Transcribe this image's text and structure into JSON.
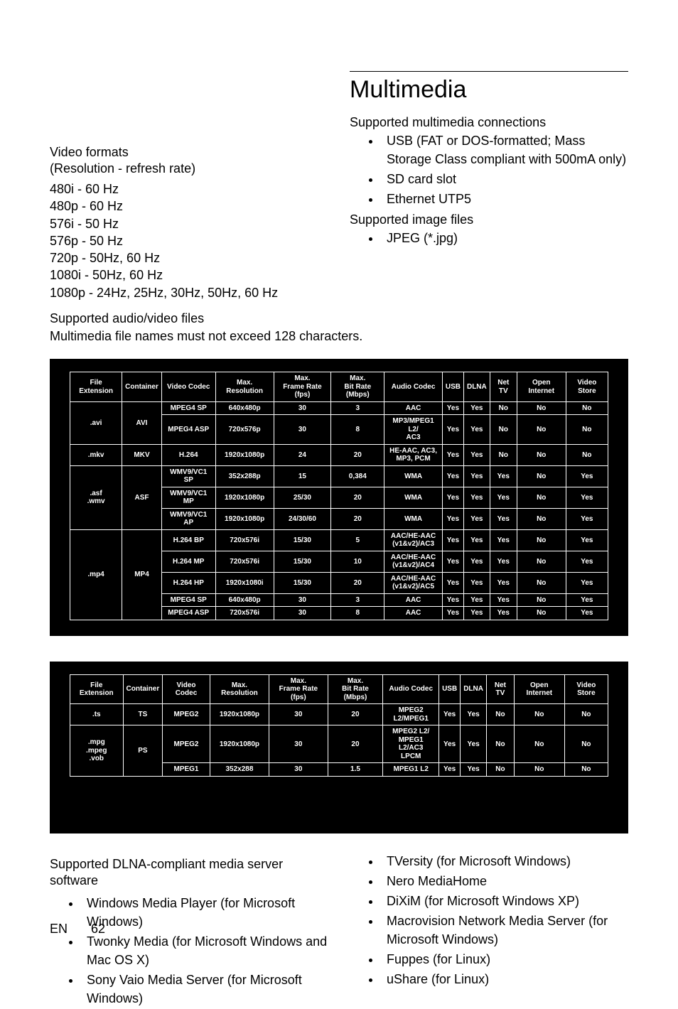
{
  "heading": "Multimedia",
  "left": {
    "video_formats_title": "Video formats",
    "video_formats_sub": "(Resolution - refresh rate)",
    "resolutions": [
      "480i - 60 Hz",
      "480p - 60 Hz",
      "576i - 50 Hz",
      "576p - 50 Hz",
      "720p - 50Hz, 60 Hz",
      "1080i - 50Hz, 60 Hz",
      "1080p - 24Hz, 25Hz, 30Hz, 50Hz, 60 Hz"
    ]
  },
  "right": {
    "conn_title": "Supported multimedia connections",
    "conn_items": [
      "USB (FAT or DOS-formatted; Mass Storage Class compliant with 500mA only)",
      "SD card slot",
      "Ethernet UTP5"
    ],
    "img_title": "Supported image files",
    "img_items": [
      "JPEG (*.jpg)"
    ]
  },
  "audio_title": "Supported audio/video files",
  "audio_note": "Multimedia file names must not exceed 128 characters.",
  "table_headers": [
    "File Extension",
    "Container",
    "Video Codec",
    "Max. Resolution",
    "Max.\nFrame Rate (fps)",
    "Max.\nBit Rate (Mbps)",
    "Audio Codec",
    "USB",
    "DLNA",
    "Net TV",
    "Open Internet",
    "Video Store"
  ],
  "table1": [
    {
      "ext": ".avi",
      "ext_rs": 2,
      "cont": "AVI",
      "cont_rs": 2,
      "vc": "MPEG4 SP",
      "res": "640x480p",
      "fr": "30",
      "br": "3",
      "ac": "AAC",
      "u": "Yes",
      "d": "Yes",
      "n": "No",
      "o": "No",
      "v": "No"
    },
    {
      "vc": "MPEG4 ASP",
      "res": "720x576p",
      "fr": "30",
      "br": "8",
      "ac": "MP3/MPEG1 L2/\nAC3",
      "u": "Yes",
      "d": "Yes",
      "n": "No",
      "o": "No",
      "v": "No"
    },
    {
      "ext": ".mkv",
      "cont": "MKV",
      "vc": "H.264",
      "res": "1920x1080p",
      "fr": "24",
      "br": "20",
      "ac": "HE-AAC, AC3,\nMP3, PCM",
      "u": "Yes",
      "d": "Yes",
      "n": "No",
      "o": "No",
      "v": "No"
    },
    {
      "ext": ".asf\n.wmv",
      "ext_rs": 3,
      "cont": "ASF",
      "cont_rs": 3,
      "vc": "WMV9/VC1 SP",
      "res": "352x288p",
      "fr": "15",
      "br": "0,384",
      "ac": "WMA",
      "u": "Yes",
      "d": "Yes",
      "n": "Yes",
      "o": "No",
      "v": "Yes"
    },
    {
      "vc": "WMV9/VC1 MP",
      "res": "1920x1080p",
      "fr": "25/30",
      "br": "20",
      "ac": "WMA",
      "u": "Yes",
      "d": "Yes",
      "n": "Yes",
      "o": "No",
      "v": "Yes"
    },
    {
      "vc": "WMV9/VC1 AP",
      "res": "1920x1080p",
      "fr": "24/30/60",
      "br": "20",
      "ac": "WMA",
      "u": "Yes",
      "d": "Yes",
      "n": "Yes",
      "o": "No",
      "v": "Yes"
    },
    {
      "ext": ".mp4",
      "ext_rs": 5,
      "cont": "MP4",
      "cont_rs": 5,
      "vc": "H.264 BP",
      "res": "720x576i",
      "fr": "15/30",
      "br": "5",
      "ac": "AAC/HE-AAC\n(v1&v2)/AC3",
      "u": "Yes",
      "d": "Yes",
      "n": "Yes",
      "o": "No",
      "v": "Yes"
    },
    {
      "vc": "H.264 MP",
      "res": "720x576i",
      "fr": "15/30",
      "br": "10",
      "ac": "AAC/HE-AAC\n(v1&v2)/AC4",
      "u": "Yes",
      "d": "Yes",
      "n": "Yes",
      "o": "No",
      "v": "Yes"
    },
    {
      "vc": "H.264 HP",
      "res": "1920x1080i",
      "fr": "15/30",
      "br": "20",
      "ac": "AAC/HE-AAC\n(v1&v2)/AC5",
      "u": "Yes",
      "d": "Yes",
      "n": "Yes",
      "o": "No",
      "v": "Yes"
    },
    {
      "vc": "MPEG4 SP",
      "res": "640x480p",
      "fr": "30",
      "br": "3",
      "ac": "AAC",
      "u": "Yes",
      "d": "Yes",
      "n": "Yes",
      "o": "No",
      "v": "Yes"
    },
    {
      "vc": "MPEG4 ASP",
      "res": "720x576i",
      "fr": "30",
      "br": "8",
      "ac": "AAC",
      "u": "Yes",
      "d": "Yes",
      "n": "Yes",
      "o": "No",
      "v": "Yes"
    }
  ],
  "table2": [
    {
      "ext": ".ts",
      "cont": "TS",
      "vc": "MPEG2",
      "res": "1920x1080p",
      "fr": "30",
      "br": "20",
      "ac": "MPEG2\nL2/MPEG1",
      "u": "Yes",
      "d": "Yes",
      "n": "No",
      "o": "No",
      "v": "No"
    },
    {
      "ext": ".mpg\n.mpeg\n.vob",
      "ext_rs": 2,
      "cont": "PS",
      "cont_rs": 2,
      "vc": "MPEG2",
      "res": "1920x1080p",
      "fr": "30",
      "br": "20",
      "ac": "MPEG2 L2/\nMPEG1 L2/AC3\nLPCM",
      "u": "Yes",
      "d": "Yes",
      "n": "No",
      "o": "No",
      "v": "No"
    },
    {
      "vc": "MPEG1",
      "res": "352x288",
      "fr": "30",
      "br": "1.5",
      "ac": "MPEG1 L2",
      "u": "Yes",
      "d": "Yes",
      "n": "No",
      "o": "No",
      "v": "No"
    }
  ],
  "dlna_title": "Supported DLNA-compliant media server software",
  "dlna_left": [
    "Windows Media Player (for Microsoft Windows)",
    "Twonky Media (for Microsoft Windows and Mac OS X)",
    "Sony Vaio Media Server (for Microsoft Windows)"
  ],
  "dlna_right": [
    "TVersity (for Microsoft Windows)",
    "Nero MediaHome",
    "DiXiM (for Microsoft Windows XP)",
    "Macrovision Network Media Server (for Microsoft Windows)",
    "Fuppes (for Linux)",
    "uShare (for Linux)"
  ],
  "footer_lang": "EN",
  "footer_page": "62"
}
